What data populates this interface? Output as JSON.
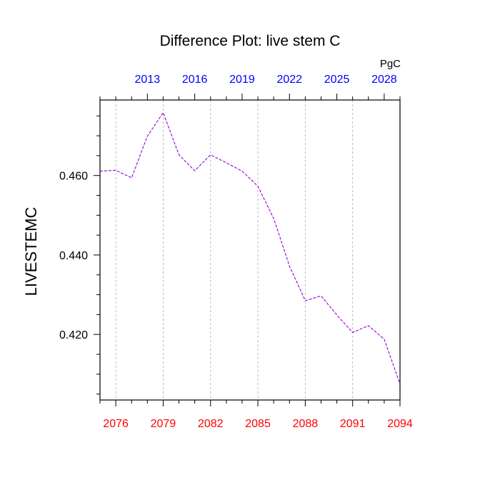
{
  "chart_data": {
    "type": "line",
    "title": "Difference Plot: live stem C",
    "ylabel": "LIVESTEMC",
    "units": "PgC",
    "x_bottom": {
      "range": [
        2075,
        2094
      ],
      "ticks": [
        2076,
        2079,
        2082,
        2085,
        2088,
        2091,
        2094
      ],
      "tick_labels": [
        "2076",
        "2079",
        "2082",
        "2085",
        "2088",
        "2091",
        "2094"
      ],
      "color": "#ff0000"
    },
    "x_top": {
      "range": [
        2010,
        2029
      ],
      "ticks": [
        2013,
        2016,
        2019,
        2022,
        2025,
        2028
      ],
      "tick_labels": [
        "2013",
        "2016",
        "2019",
        "2022",
        "2025",
        "2028"
      ],
      "color": "#0000ff"
    },
    "ylim": [
      0.4035,
      0.479
    ],
    "y_ticks": [
      0.42,
      0.44,
      0.46
    ],
    "y_tick_labels": [
      "0.420",
      "0.440",
      "0.460"
    ],
    "grid": "vertical dashed",
    "series": [
      {
        "color": "#9400d3",
        "style": "dashed",
        "x": [
          2075,
          2076,
          2077,
          2078,
          2079,
          2080,
          2081,
          2082,
          2083,
          2084,
          2085,
          2086,
          2087,
          2088,
          2089,
          2090,
          2091,
          2092,
          2093,
          2094
        ],
        "values": [
          0.4611,
          0.4613,
          0.4594,
          0.4699,
          0.4758,
          0.4652,
          0.4612,
          0.4652,
          0.4632,
          0.4611,
          0.4573,
          0.4492,
          0.4372,
          0.4285,
          0.4297,
          0.4249,
          0.4205,
          0.4222,
          0.4188,
          0.4075
        ]
      }
    ]
  }
}
